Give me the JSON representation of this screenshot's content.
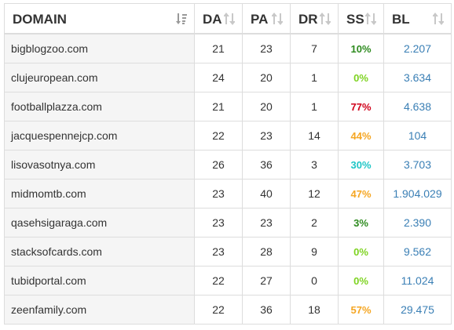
{
  "table": {
    "headers": {
      "domain": "DOMAIN",
      "da": "DA",
      "pa": "PA",
      "dr": "DR",
      "ss": "SS",
      "bl": "BL"
    },
    "sort_icons": {
      "domain": "sort-alpha-down-icon",
      "other": "sort-arrows-icon"
    },
    "rows": [
      {
        "domain": "bigblogzoo.com",
        "da": "21",
        "pa": "23",
        "dr": "7",
        "ss": "10%",
        "ss_color": "#2e8b1f",
        "bl": "2.207"
      },
      {
        "domain": "clujeuropean.com",
        "da": "24",
        "pa": "20",
        "dr": "1",
        "ss": "0%",
        "ss_color": "#7ed321",
        "bl": "3.634"
      },
      {
        "domain": "footballplazza.com",
        "da": "21",
        "pa": "20",
        "dr": "1",
        "ss": "77%",
        "ss_color": "#d0021b",
        "bl": "4.638"
      },
      {
        "domain": "jacquespennejcp.com",
        "da": "22",
        "pa": "23",
        "dr": "14",
        "ss": "44%",
        "ss_color": "#f5a623",
        "bl": "104"
      },
      {
        "domain": "lisovasotnya.com",
        "da": "26",
        "pa": "36",
        "dr": "3",
        "ss": "30%",
        "ss_color": "#1fc6c6",
        "bl": "3.703"
      },
      {
        "domain": "midmomtb.com",
        "da": "23",
        "pa": "40",
        "dr": "12",
        "ss": "47%",
        "ss_color": "#f5a623",
        "bl": "1.904.029"
      },
      {
        "domain": "qasehsigaraga.com",
        "da": "23",
        "pa": "23",
        "dr": "2",
        "ss": "3%",
        "ss_color": "#2e8b1f",
        "bl": "2.390"
      },
      {
        "domain": "stacksofcards.com",
        "da": "23",
        "pa": "28",
        "dr": "9",
        "ss": "0%",
        "ss_color": "#7ed321",
        "bl": "9.562"
      },
      {
        "domain": "tubidportal.com",
        "da": "22",
        "pa": "27",
        "dr": "0",
        "ss": "0%",
        "ss_color": "#7ed321",
        "bl": "11.024"
      },
      {
        "domain": "zeenfamily.com",
        "da": "22",
        "pa": "36",
        "dr": "18",
        "ss": "57%",
        "ss_color": "#f5a623",
        "bl": "29.475"
      }
    ]
  }
}
